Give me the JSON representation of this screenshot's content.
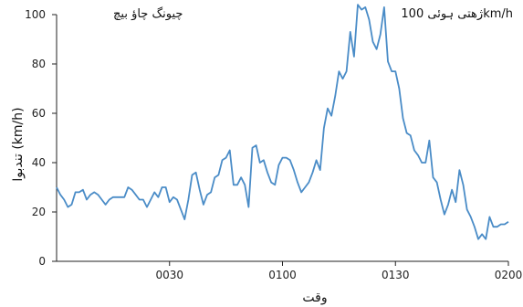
{
  "chart_data": {
    "type": "line",
    "title": "",
    "xlabel": "وقت",
    "ylabel": "تندبوا (km/h)",
    "ylim": [
      0,
      100
    ],
    "yticks": [
      0,
      20,
      40,
      60,
      80,
      100
    ],
    "xticks": [
      {
        "label": "0030",
        "minute": 30
      },
      {
        "label": "0100",
        "minute": 60
      },
      {
        "label": "0130",
        "minute": 90
      },
      {
        "label": "0200",
        "minute": 120
      }
    ],
    "xlim_minutes": [
      0,
      120
    ],
    "grid": false,
    "line_color": "#4a8cc7",
    "annotations": {
      "left": "چیونگ چاؤ بیچ",
      "right": "ژھتی ہوئی 100km/h"
    },
    "series": [
      {
        "name": "",
        "x": [
          0,
          1,
          2,
          3,
          4,
          5,
          6,
          7,
          8,
          9,
          10,
          11,
          12,
          13,
          14,
          15,
          16,
          17,
          18,
          19,
          20,
          21,
          22,
          23,
          24,
          25,
          26,
          27,
          28,
          29,
          30,
          31,
          32,
          33,
          34,
          35,
          36,
          37,
          38,
          39,
          40,
          41,
          42,
          43,
          44,
          45,
          46,
          47,
          48,
          49,
          50,
          51,
          52,
          53,
          54,
          55,
          56,
          57,
          58,
          59,
          60,
          61,
          62,
          63,
          64,
          65,
          66,
          67,
          68,
          69,
          70,
          71,
          72,
          73,
          74,
          75,
          76,
          77,
          78,
          79,
          80,
          81,
          82,
          83,
          84,
          85,
          86,
          87,
          88,
          89,
          90,
          91,
          92,
          93,
          94,
          95,
          96,
          97,
          98,
          99,
          100,
          101,
          102,
          103,
          104,
          105,
          106,
          107,
          108,
          109,
          110,
          111,
          112,
          113,
          114,
          115,
          116,
          117,
          118,
          119,
          120
        ],
        "values": [
          30,
          27,
          25,
          22,
          23,
          28,
          28,
          29,
          25,
          27,
          28,
          27,
          25,
          23,
          25,
          26,
          26,
          26,
          26,
          30,
          29,
          27,
          25,
          25,
          22,
          25,
          28,
          26,
          30,
          30,
          24,
          26,
          25,
          21,
          17,
          25,
          35,
          36,
          29,
          23,
          27,
          28,
          34,
          35,
          41,
          42,
          45,
          31,
          31,
          34,
          31,
          22,
          46,
          47,
          40,
          41,
          36,
          32,
          31,
          39,
          42,
          42,
          41,
          37,
          32,
          28,
          30,
          32,
          36,
          41,
          37,
          54,
          62,
          59,
          67,
          77,
          74,
          77,
          93,
          83,
          104,
          102,
          103,
          98,
          89,
          86,
          92,
          103,
          81,
          77,
          77,
          70,
          58,
          52,
          51,
          45,
          43,
          40,
          40,
          49,
          34,
          32,
          25,
          19,
          23,
          29,
          24,
          37,
          31,
          21,
          18,
          14,
          9,
          11,
          9,
          18,
          14,
          14,
          15,
          15,
          16
        ]
      }
    ]
  }
}
